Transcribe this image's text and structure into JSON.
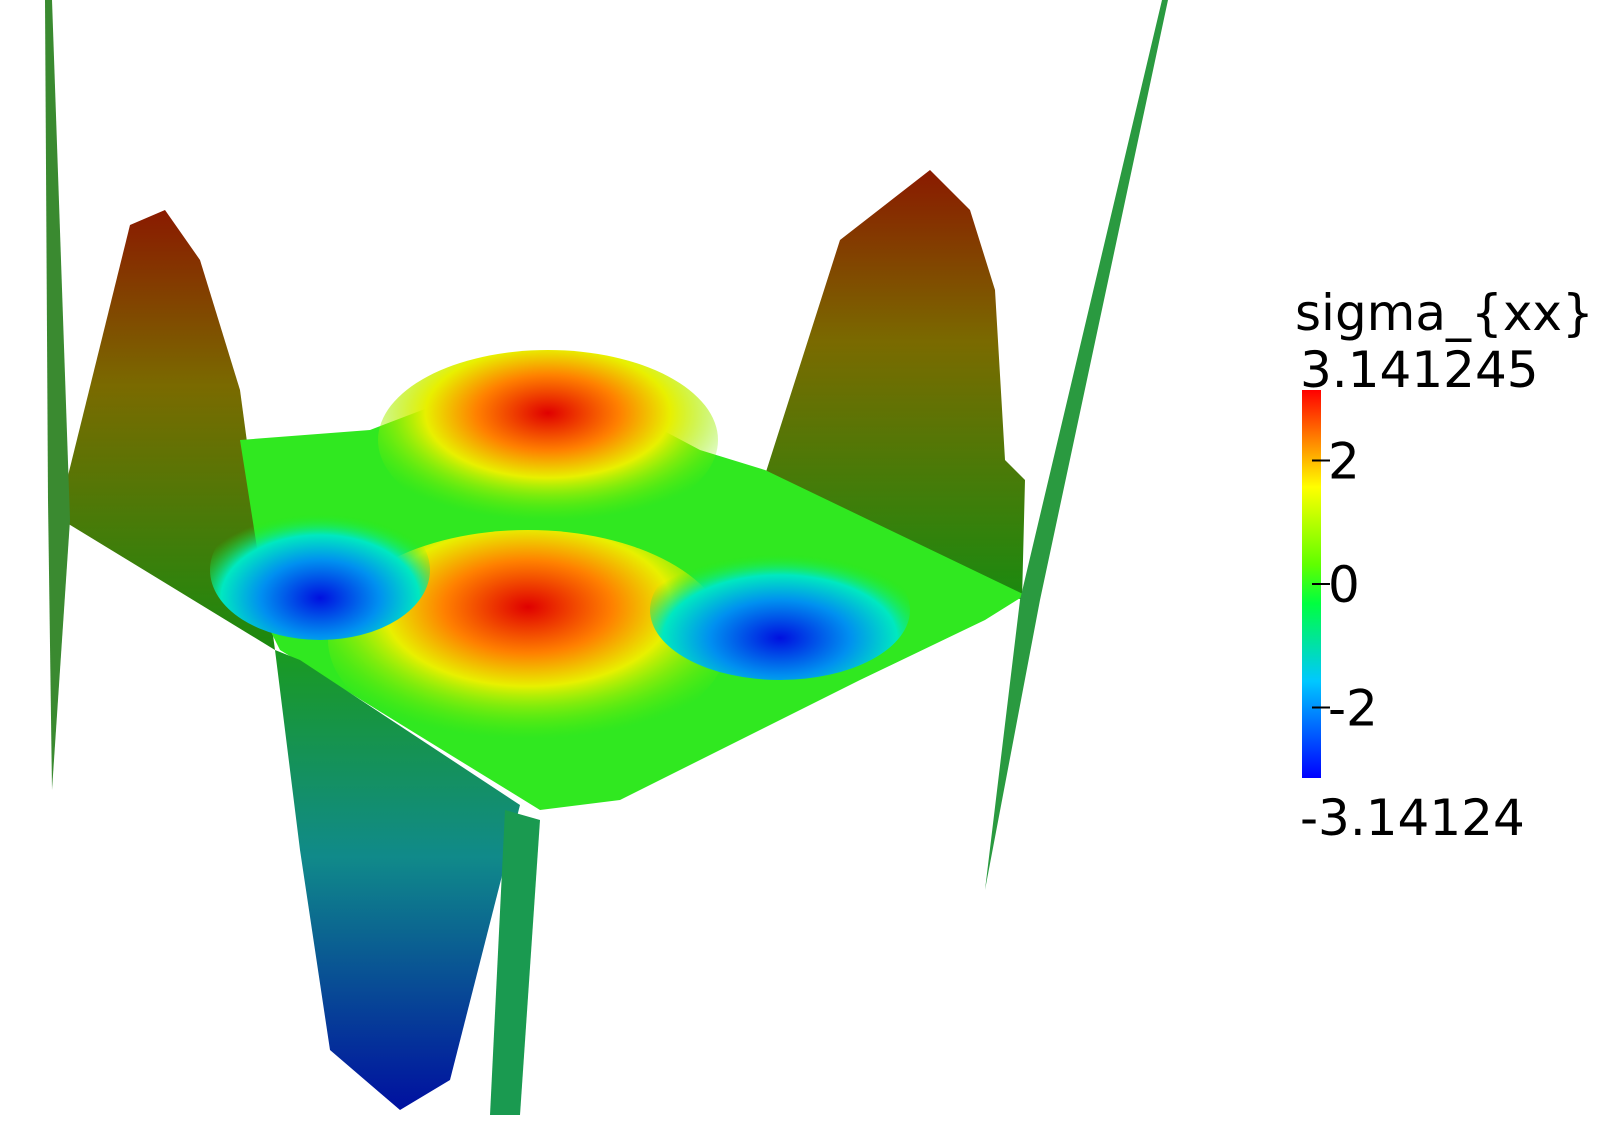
{
  "legend": {
    "title": "sigma_{xx}",
    "range": [
      -3.14124,
      3.141245
    ],
    "ticks": [
      2,
      0,
      -2
    ]
  }
}
